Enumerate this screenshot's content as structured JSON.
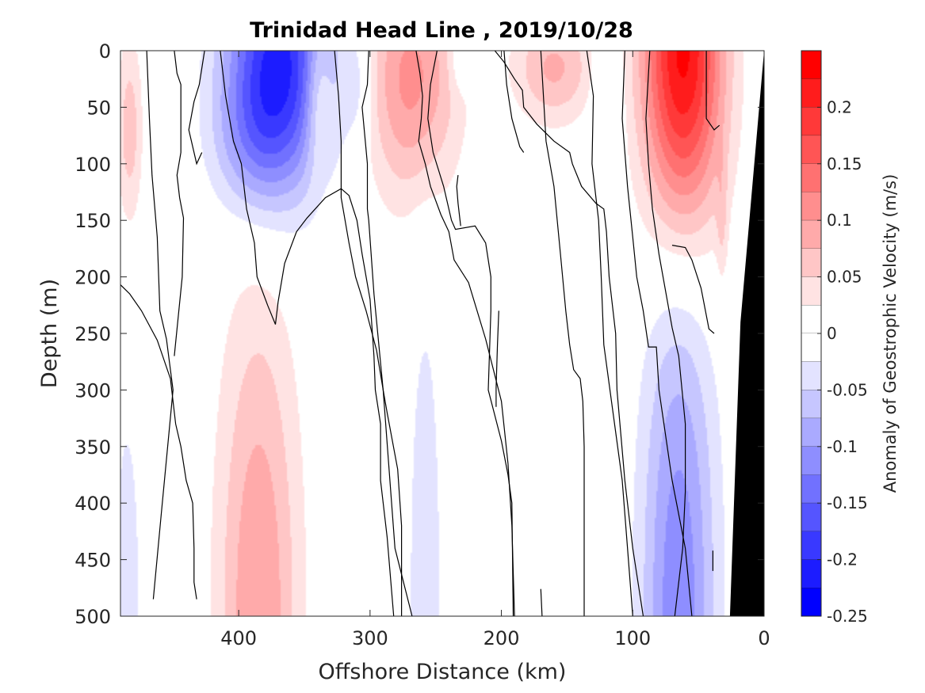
{
  "chart_data": {
    "type": "heatmap",
    "subtype": "filled-contour section",
    "title": "Trinidad Head Line , 2019/10/28",
    "xlabel": "Offshore Distance (km)",
    "ylabel": "Depth (m)",
    "xlim": [
      490,
      0
    ],
    "x_reversed": true,
    "ylim": [
      500,
      0
    ],
    "y_reversed": true,
    "x_ticks": [
      "400",
      "300",
      "200",
      "100",
      "0"
    ],
    "x_tick_values": [
      400,
      300,
      200,
      100,
      0
    ],
    "y_ticks": [
      "0",
      "50",
      "100",
      "150",
      "200",
      "250",
      "300",
      "350",
      "400",
      "450",
      "500"
    ],
    "y_tick_values": [
      0,
      50,
      100,
      150,
      200,
      250,
      300,
      350,
      400,
      450,
      500
    ],
    "colorbar": {
      "label": "Anomaly of Geostrophic Velocity (m/s)",
      "range": [
        -0.25,
        0.25
      ],
      "tick_labels": [
        "0.2",
        "0.15",
        "0.1",
        "0.05",
        "0",
        "-0.05",
        "-0.1",
        "-0.15",
        "-0.2",
        "-0.25"
      ],
      "tick_values": [
        0.2,
        0.15,
        0.1,
        0.05,
        0,
        -0.05,
        -0.1,
        -0.15,
        -0.2,
        -0.25
      ],
      "levels": [
        {
          "lo": 0.225,
          "hi": 0.25,
          "color": "#ff0000"
        },
        {
          "lo": 0.2,
          "hi": 0.225,
          "color": "#ff1c1c"
        },
        {
          "lo": 0.175,
          "hi": 0.2,
          "color": "#ff3939"
        },
        {
          "lo": 0.15,
          "hi": 0.175,
          "color": "#ff5555"
        },
        {
          "lo": 0.125,
          "hi": 0.15,
          "color": "#ff7171"
        },
        {
          "lo": 0.1,
          "hi": 0.125,
          "color": "#ff8e8e"
        },
        {
          "lo": 0.075,
          "hi": 0.1,
          "color": "#ffaaaa"
        },
        {
          "lo": 0.05,
          "hi": 0.075,
          "color": "#ffc6c6"
        },
        {
          "lo": 0.025,
          "hi": 0.05,
          "color": "#ffe3e3"
        },
        {
          "lo": 0,
          "hi": 0.025,
          "color": "#ffffff"
        },
        {
          "lo": -0.025,
          "hi": 0,
          "color": "#ffffff"
        },
        {
          "lo": -0.05,
          "hi": -0.025,
          "color": "#e3e3ff"
        },
        {
          "lo": -0.075,
          "hi": -0.05,
          "color": "#c6c6ff"
        },
        {
          "lo": -0.1,
          "hi": -0.075,
          "color": "#aaaaff"
        },
        {
          "lo": -0.125,
          "hi": -0.1,
          "color": "#8e8eff"
        },
        {
          "lo": -0.15,
          "hi": -0.125,
          "color": "#7171ff"
        },
        {
          "lo": -0.175,
          "hi": -0.15,
          "color": "#5555ff"
        },
        {
          "lo": -0.2,
          "hi": -0.175,
          "color": "#3939ff"
        },
        {
          "lo": -0.225,
          "hi": -0.2,
          "color": "#1c1cff"
        },
        {
          "lo": -0.25,
          "hi": -0.225,
          "color": "#0000ff"
        }
      ]
    },
    "features": [
      {
        "kind": "jet",
        "sign": "negative",
        "center_km": 370,
        "center_depth_m": 10,
        "peak": -0.21,
        "sx_km": 28,
        "sy_m": 80,
        "note": "surface jet"
      },
      {
        "kind": "jet",
        "sign": "negative",
        "center_km": 390,
        "center_depth_m": 80,
        "peak": -0.05,
        "sx_km": 22,
        "sy_m": 45
      },
      {
        "kind": "jet",
        "sign": "positive",
        "center_km": 268,
        "center_depth_m": 25,
        "peak": 0.11,
        "sx_km": 25,
        "sy_m": 75
      },
      {
        "kind": "jet",
        "sign": "positive",
        "center_km": 62,
        "center_depth_m": 5,
        "peak": 0.24,
        "sx_km": 22,
        "sy_m": 110,
        "note": "surface jet"
      },
      {
        "kind": "jet",
        "sign": "positive",
        "center_km": 160,
        "center_depth_m": 15,
        "peak": 0.08,
        "sx_km": 22,
        "sy_m": 35
      },
      {
        "kind": "jet",
        "sign": "positive",
        "center_km": 340,
        "center_depth_m": 40,
        "peak": 0.06,
        "sx_km": 7,
        "sy_m": 45
      },
      {
        "kind": "jet",
        "sign": "positive",
        "center_km": 483,
        "center_depth_m": 70,
        "peak": 0.065,
        "sx_km": 7,
        "sy_m": 60
      },
      {
        "kind": "jet",
        "sign": "positive",
        "center_km": 32,
        "center_depth_m": 150,
        "peak": 0.035,
        "sx_km": 3,
        "sy_m": 40
      },
      {
        "kind": "jet",
        "sign": "negative",
        "center_km": 310,
        "center_depth_m": 30,
        "peak": -0.04,
        "sx_km": 8,
        "sy_m": 35
      },
      {
        "kind": "jet",
        "sign": "negative",
        "center_km": 120,
        "center_depth_m": 40,
        "peak": -0.035,
        "sx_km": 8,
        "sy_m": 50
      },
      {
        "kind": "jet",
        "sign": "negative",
        "center_km": 232,
        "center_depth_m": 10,
        "peak": -0.03,
        "sx_km": 6,
        "sy_m": 20
      },
      {
        "kind": "deep",
        "sign": "positive",
        "center_km": 385,
        "center_depth_m": 500,
        "peak": 0.1,
        "sx_km": 22,
        "sy_m": 200
      },
      {
        "kind": "deep",
        "sign": "negative",
        "center_km": 258,
        "center_depth_m": 500,
        "peak": -0.045,
        "sx_km": 10,
        "sy_m": 220
      },
      {
        "kind": "deep",
        "sign": "negative",
        "center_km": 65,
        "center_depth_m": 500,
        "peak": -0.12,
        "sx_km": 20,
        "sy_m": 220
      },
      {
        "kind": "deep",
        "sign": "negative",
        "center_km": 485,
        "center_depth_m": 500,
        "peak": -0.045,
        "sx_km": 8,
        "sy_m": 140
      }
    ],
    "bathymetry": {
      "color": "#000000",
      "polygon_km_m": [
        [
          0,
          0
        ],
        [
          0,
          500
        ],
        [
          26,
          500
        ],
        [
          18,
          240
        ],
        [
          6,
          80
        ],
        [
          0,
          0
        ]
      ]
    },
    "zero_contours_km_m": [
      [
        [
          470,
          0
        ],
        [
          468,
          60
        ],
        [
          466,
          110
        ],
        [
          462,
          165
        ],
        [
          460,
          230
        ],
        [
          455,
          255
        ],
        [
          450,
          300
        ],
        [
          459,
          410
        ],
        [
          465,
          485
        ]
      ],
      [
        [
          449,
          0
        ],
        [
          447,
          20
        ],
        [
          444,
          30
        ],
        [
          444,
          90
        ],
        [
          447,
          110
        ],
        [
          445,
          130
        ],
        [
          442,
          148
        ],
        [
          443,
          200
        ],
        [
          449,
          270
        ]
      ],
      [
        [
          426,
          0
        ],
        [
          430,
          30
        ],
        [
          434,
          45
        ],
        [
          438,
          70
        ],
        [
          432,
          100
        ],
        [
          428,
          90
        ]
      ],
      [
        [
          490,
          207
        ],
        [
          483,
          215
        ],
        [
          474,
          230
        ],
        [
          462,
          256
        ],
        [
          452,
          290
        ],
        [
          448,
          330
        ],
        [
          444,
          350
        ],
        [
          440,
          380
        ],
        [
          435,
          400
        ],
        [
          434,
          440
        ],
        [
          434,
          470
        ],
        [
          432,
          485
        ]
      ],
      [
        [
          414,
          0
        ],
        [
          410,
          40
        ],
        [
          404,
          80
        ],
        [
          398,
          100
        ],
        [
          394,
          140
        ],
        [
          388,
          170
        ],
        [
          386,
          200
        ],
        [
          378,
          225
        ],
        [
          372,
          242
        ],
        [
          370,
          222
        ],
        [
          365,
          188
        ],
        [
          356,
          160
        ],
        [
          348,
          148
        ],
        [
          334,
          130
        ],
        [
          322,
          122
        ],
        [
          316,
          128
        ],
        [
          310,
          150
        ],
        [
          306,
          180
        ],
        [
          300,
          220
        ],
        [
          297,
          270
        ],
        [
          296,
          300
        ],
        [
          292,
          330
        ],
        [
          292,
          380
        ],
        [
          287,
          430
        ],
        [
          282,
          500
        ]
      ],
      [
        [
          301,
          0
        ],
        [
          302,
          30
        ],
        [
          306,
          50
        ],
        [
          302,
          100
        ],
        [
          302,
          140
        ],
        [
          301,
          150
        ],
        [
          297,
          215
        ],
        [
          290,
          300
        ],
        [
          281,
          440
        ],
        [
          268,
          500
        ]
      ],
      [
        [
          327,
          0
        ],
        [
          324,
          40
        ],
        [
          322,
          80
        ],
        [
          322,
          130
        ],
        [
          316,
          170
        ],
        [
          311,
          200
        ],
        [
          303,
          230
        ],
        [
          295,
          265
        ],
        [
          290,
          300
        ],
        [
          287,
          320
        ],
        [
          279,
          370
        ],
        [
          276,
          420
        ],
        [
          276,
          500
        ]
      ],
      [
        [
          265,
          0
        ],
        [
          262,
          20
        ],
        [
          260,
          40
        ],
        [
          261,
          60
        ],
        [
          263,
          80
        ],
        [
          258,
          100
        ],
        [
          254,
          120
        ],
        [
          246,
          145
        ],
        [
          240,
          160
        ],
        [
          236,
          185
        ],
        [
          225,
          205
        ],
        [
          212,
          255
        ],
        [
          200,
          310
        ],
        [
          195,
          365
        ],
        [
          192,
          420
        ],
        [
          190,
          500
        ]
      ],
      [
        [
          249,
          0
        ],
        [
          254,
          30
        ],
        [
          256,
          60
        ],
        [
          252,
          90
        ],
        [
          244,
          120
        ],
        [
          238,
          150
        ],
        [
          235,
          158
        ],
        [
          220,
          155
        ],
        [
          212,
          170
        ],
        [
          208,
          200
        ],
        [
          208,
          230
        ],
        [
          210,
          300
        ],
        [
          200,
          345
        ],
        [
          195,
          375
        ],
        [
          192,
          400
        ],
        [
          191,
          500
        ]
      ],
      [
        [
          205,
          0
        ],
        [
          198,
          10
        ],
        [
          190,
          25
        ],
        [
          184,
          35
        ],
        [
          183,
          50
        ],
        [
          173,
          65
        ],
        [
          160,
          80
        ],
        [
          148,
          90
        ],
        [
          146,
          100
        ],
        [
          139,
          120
        ],
        [
          128,
          135
        ],
        [
          122,
          140
        ],
        [
          120,
          160
        ],
        [
          118,
          200
        ],
        [
          113,
          250
        ],
        [
          112,
          300
        ],
        [
          106,
          380
        ],
        [
          100,
          440
        ],
        [
          92,
          500
        ]
      ],
      [
        [
          198,
          0
        ],
        [
          196,
          30
        ],
        [
          192,
          60
        ],
        [
          186,
          85
        ],
        [
          183,
          90
        ]
      ],
      [
        [
          135,
          0
        ],
        [
          130,
          40
        ],
        [
          131,
          100
        ],
        [
          126,
          150
        ],
        [
          124,
          200
        ],
        [
          122,
          260
        ],
        [
          115,
          320
        ],
        [
          108,
          380
        ],
        [
          104,
          440
        ],
        [
          100,
          500
        ]
      ],
      [
        [
          170,
          0
        ],
        [
          166,
          80
        ],
        [
          160,
          120
        ],
        [
          155,
          180
        ],
        [
          151,
          230
        ],
        [
          148,
          260
        ],
        [
          145,
          282
        ],
        [
          140,
          290
        ],
        [
          138,
          310
        ],
        [
          137,
          350
        ],
        [
          137,
          500
        ]
      ],
      [
        [
          87,
          0
        ],
        [
          90,
          60
        ],
        [
          88,
          100
        ],
        [
          85,
          140
        ],
        [
          80,
          180
        ],
        [
          70,
          245
        ],
        [
          65,
          270
        ],
        [
          60,
          330
        ],
        [
          60,
          390
        ],
        [
          62,
          440
        ],
        [
          68,
          500
        ]
      ],
      [
        [
          106,
          0
        ],
        [
          108,
          60
        ],
        [
          104,
          120
        ],
        [
          100,
          165
        ],
        [
          97,
          200
        ],
        [
          92,
          230
        ],
        [
          88,
          262
        ],
        [
          82,
          262
        ],
        [
          80,
          300
        ],
        [
          70,
          380
        ],
        [
          60,
          440
        ],
        [
          55,
          500
        ]
      ],
      [
        [
          44,
          0
        ],
        [
          44,
          60
        ],
        [
          38,
          70
        ],
        [
          34,
          66
        ]
      ],
      [
        [
          70,
          172
        ],
        [
          60,
          174
        ],
        [
          55,
          185
        ],
        [
          48,
          210
        ],
        [
          42,
          246
        ],
        [
          38,
          250
        ]
      ],
      [
        [
          202,
          230
        ],
        [
          203,
          260
        ],
        [
          204,
          298
        ],
        [
          204,
          315
        ]
      ],
      [
        [
          233,
          110
        ],
        [
          234,
          120
        ],
        [
          233,
          135
        ],
        [
          231,
          155
        ]
      ],
      [
        [
          170,
          476
        ],
        [
          169,
          500
        ]
      ],
      [
        [
          39,
          442
        ],
        [
          39,
          460
        ]
      ]
    ]
  }
}
